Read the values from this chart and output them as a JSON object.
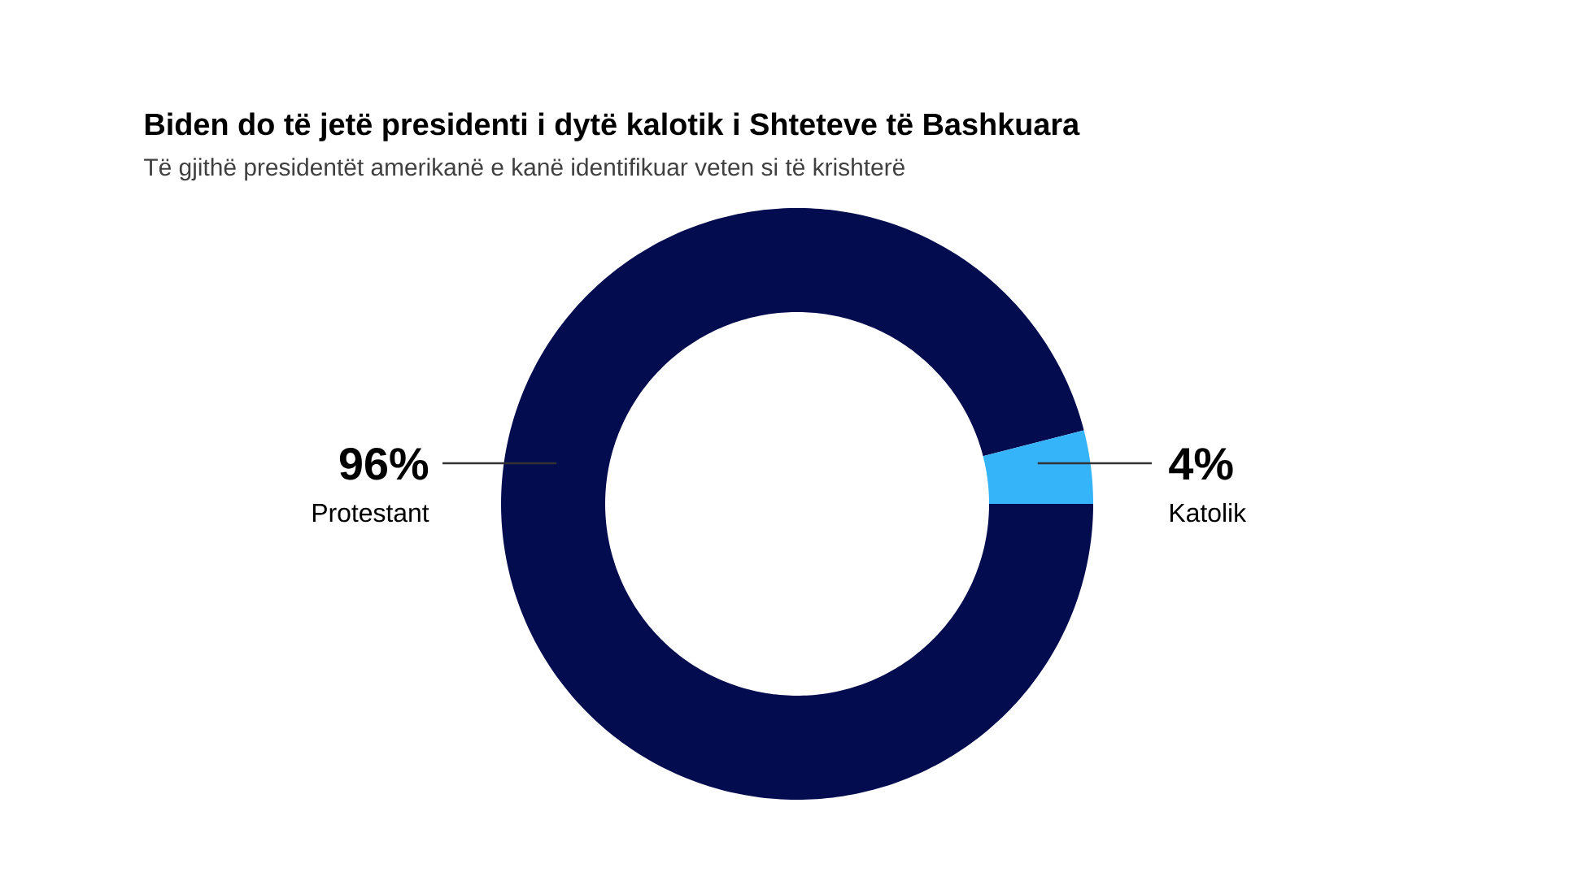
{
  "chart_data": {
    "type": "donut",
    "title": "Biden do të jetë presidenti i dytë kalotik i Shteteve të Bashkuara",
    "subtitle": "Të gjithë presidentët amerikanë e kanë identifikuar veten si të krishterë",
    "categories": [
      "Protestant",
      "Katolik"
    ],
    "values": [
      96,
      4
    ],
    "value_labels": [
      "96%",
      "4%"
    ],
    "colors": [
      "#020c4f",
      "#35b4fa"
    ]
  }
}
